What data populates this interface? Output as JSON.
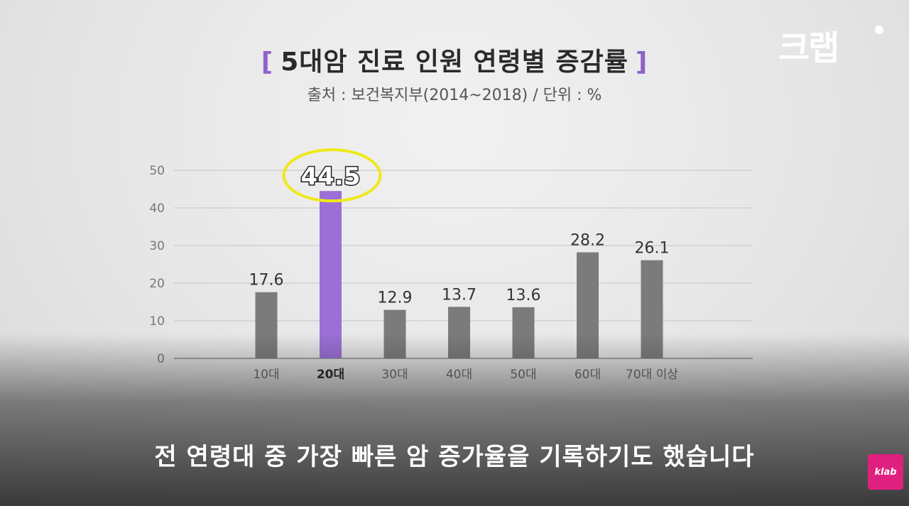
{
  "header": {
    "title": "5대암 진료 인원 연령별 증감률",
    "bracket_open": "[",
    "bracket_close": "]",
    "subtitle": "출처 : 보건복지부(2014~2018) / 단위 : %"
  },
  "brand": {
    "logo_text": "크랩",
    "badge_text": "klab"
  },
  "caption": "전 연령대 중 가장 빠른 암 증가율을 기록하기도 했습니다",
  "colors": {
    "bar_default": "#7b7b7b",
    "bar_highlight": "#9b6fd6",
    "highlight_circle": "#efe91a",
    "accent": "#8e63c9"
  },
  "chart_data": {
    "type": "bar",
    "categories": [
      "10대",
      "20대",
      "30대",
      "40대",
      "50대",
      "60대",
      "70대 이상"
    ],
    "values": [
      17.6,
      44.5,
      12.9,
      13.7,
      13.6,
      28.2,
      26.1
    ],
    "value_labels": [
      "17.6",
      "44.5",
      "12.9",
      "13.7",
      "13.6",
      "28.2",
      "26.1"
    ],
    "highlight_category": "20대",
    "ylim": [
      0,
      50
    ],
    "yticks": [
      "0",
      "10",
      "20",
      "30",
      "40",
      "50"
    ],
    "grid": true
  }
}
